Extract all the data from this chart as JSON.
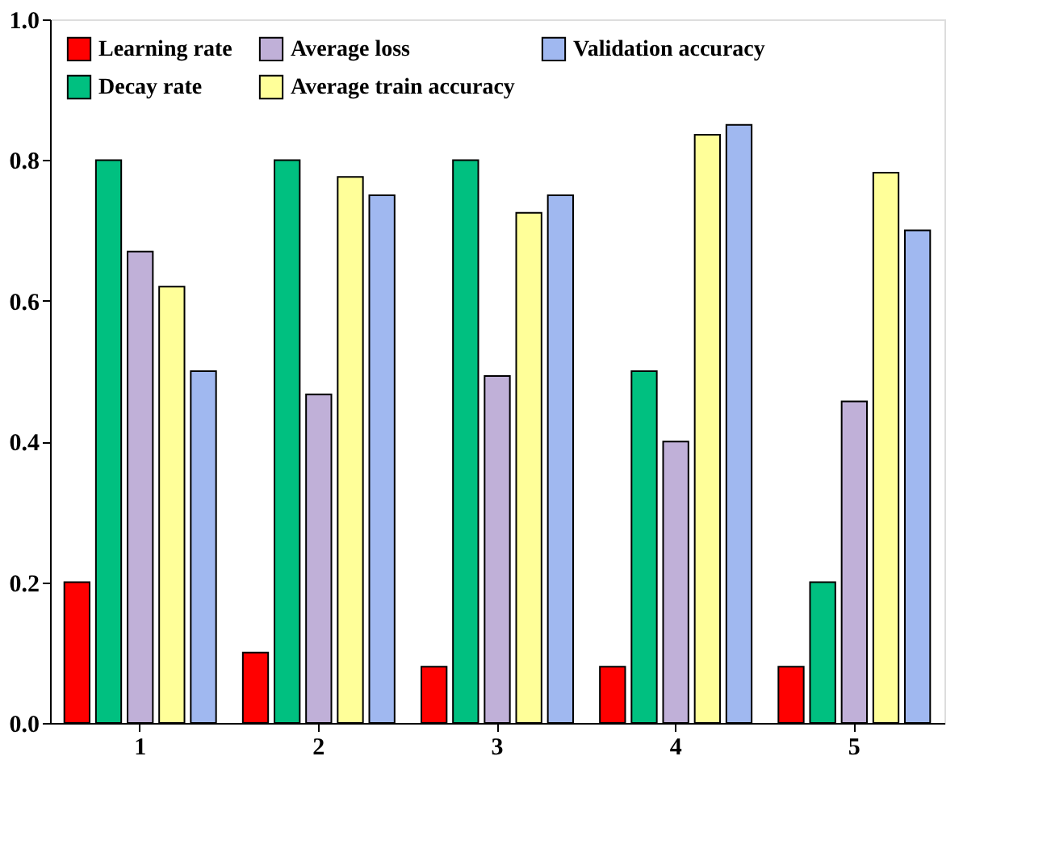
{
  "chart_data": {
    "type": "bar",
    "categories": [
      "1",
      "2",
      "3",
      "4",
      "5"
    ],
    "series": [
      {
        "name": "Learning rate",
        "color": "#ff0000",
        "values": [
          0.2,
          0.1,
          0.08,
          0.08,
          0.08
        ]
      },
      {
        "name": "Decay rate",
        "color": "#00c080",
        "values": [
          0.8,
          0.8,
          0.8,
          0.5,
          0.2
        ]
      },
      {
        "name": "Average loss",
        "color": "#c0b0d8",
        "values": [
          0.67,
          0.467,
          0.493,
          0.4,
          0.457
        ]
      },
      {
        "name": "Average train accuracy",
        "color": "#ffff99",
        "values": [
          0.62,
          0.776,
          0.725,
          0.836,
          0.782
        ]
      },
      {
        "name": "Validation accuracy",
        "color": "#a0b8f0",
        "values": [
          0.5,
          0.75,
          0.75,
          0.85,
          0.7
        ]
      }
    ],
    "ylim": [
      0,
      1
    ],
    "yticks": [
      {
        "value": 0,
        "label": "0.0"
      },
      0.2,
      0.4,
      0.6,
      0.8,
      {
        "value": 1,
        "label": "1.0"
      }
    ],
    "grid": false,
    "legend": "top"
  }
}
